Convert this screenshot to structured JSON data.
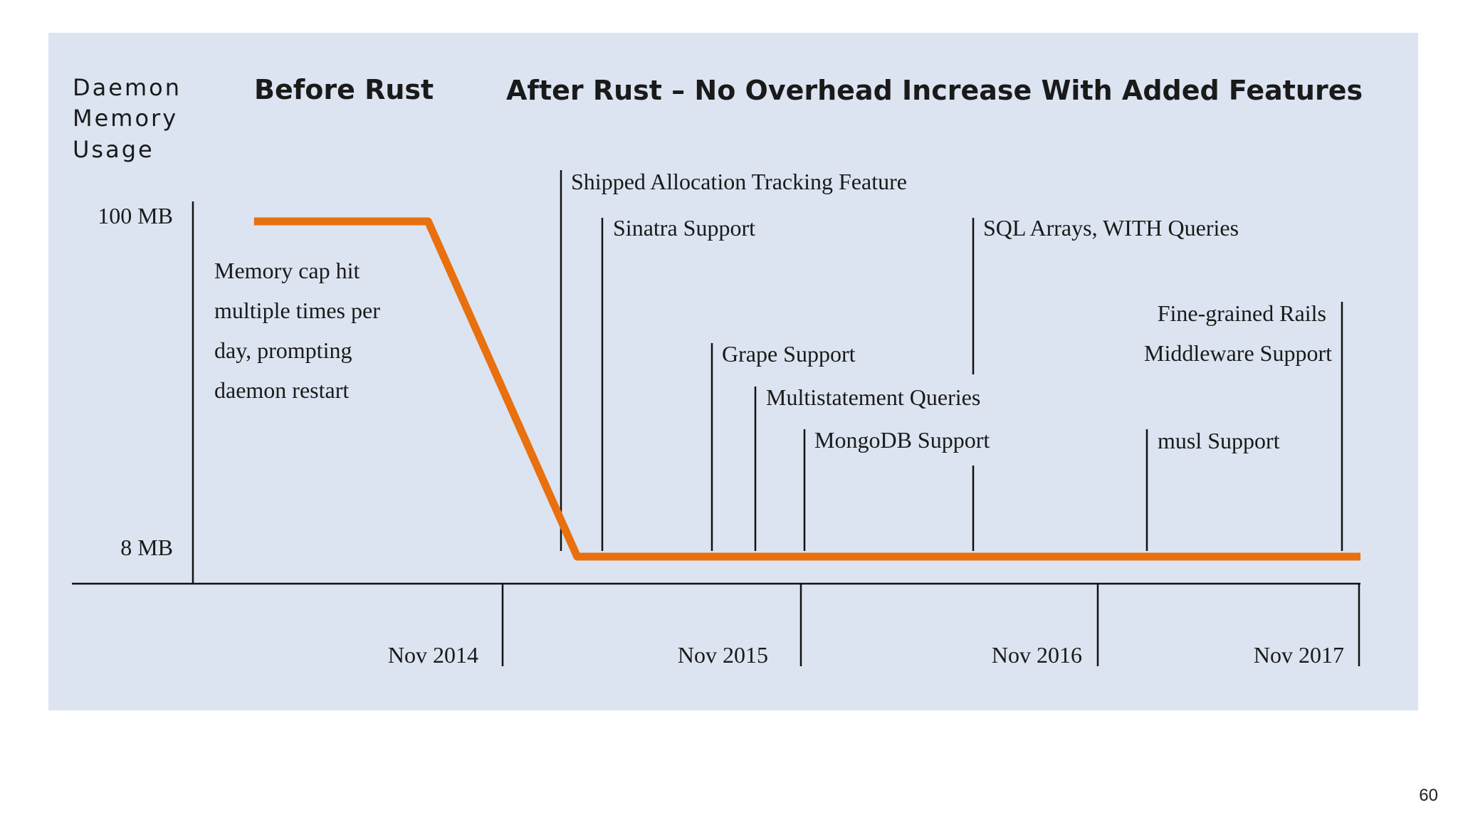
{
  "chart_data": {
    "type": "line",
    "ylabel_lines": [
      "Daemon",
      "Memory",
      "Usage"
    ],
    "section_titles": {
      "before": "Before Rust",
      "after": "After Rust – No Overhead Increase With Added Features"
    },
    "y_ticks": [
      "100 MB",
      "8 MB"
    ],
    "x_ticks": [
      "Nov 2014",
      "Nov 2015",
      "Nov 2016",
      "Nov 2017"
    ],
    "series": [
      {
        "color": "#e8700f",
        "points": [
          {
            "x": "2014-01",
            "y": 100
          },
          {
            "x": "2014-08",
            "y": 100
          },
          {
            "x": "2015-02",
            "y": 8
          },
          {
            "x": "2017-11",
            "y": 8
          }
        ]
      }
    ],
    "note_lines": [
      "Memory cap hit",
      "multiple times per",
      "day, prompting",
      "daemon restart"
    ],
    "events": [
      {
        "label": [
          "Shipped Allocation Tracking Feature"
        ]
      },
      {
        "label": [
          "Sinatra Support"
        ]
      },
      {
        "label": [
          "Grape Support"
        ]
      },
      {
        "label": [
          "Multistatement Queries"
        ]
      },
      {
        "label": [
          "MongoDB Support"
        ]
      },
      {
        "label": [
          "SQL Arrays, WITH Queries"
        ]
      },
      {
        "label": [
          "musl Support"
        ]
      },
      {
        "label": [
          "Fine-grained Rails",
          "Middleware Support"
        ]
      }
    ]
  },
  "page_number": "60"
}
